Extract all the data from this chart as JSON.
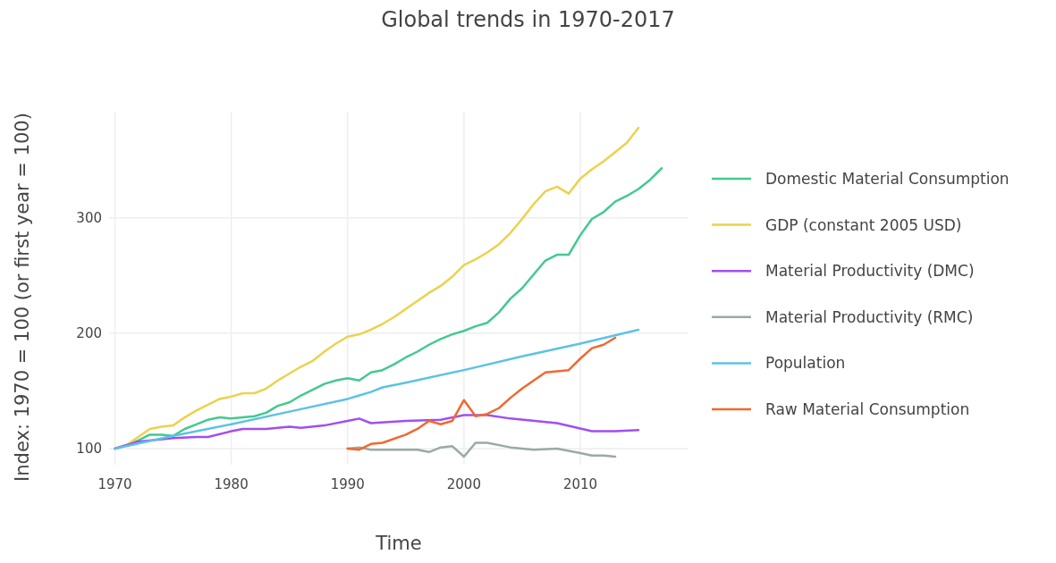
{
  "chart_data": {
    "type": "line",
    "title": "Global trends in 1970-2017",
    "xlabel": "Time",
    "ylabel": "Index: 1970 = 100 (or first year = 100)",
    "xlim": [
      1969.5,
      2019.3
    ],
    "xticks": [
      1970,
      1980,
      1990,
      2000,
      2010
    ],
    "ylim": [
      86,
      392
    ],
    "yticks": [
      100,
      200,
      300
    ],
    "grid": true,
    "legend": "right",
    "marker": "none",
    "line_style": "solid",
    "series": [
      {
        "name": "Domestic Material Consumption",
        "color": "#44c98f",
        "x": [
          1970,
          1971,
          1972,
          1973,
          1974,
          1975,
          1976,
          1977,
          1978,
          1979,
          1980,
          1981,
          1982,
          1983,
          1984,
          1985,
          1986,
          1987,
          1988,
          1989,
          1990,
          1991,
          1992,
          1993,
          1994,
          1995,
          1996,
          1997,
          1998,
          1999,
          2000,
          2001,
          2002,
          2003,
          2004,
          2005,
          2006,
          2007,
          2008,
          2009,
          2010,
          2011,
          2012,
          2013,
          2014,
          2015,
          2016,
          2017
        ],
        "values": [
          100,
          103,
          107,
          112,
          112,
          111,
          117,
          121,
          125,
          127,
          126,
          127,
          128,
          131,
          137,
          140,
          146,
          151,
          156,
          159,
          161,
          159,
          166,
          168,
          173,
          179,
          184,
          190,
          195,
          199,
          202,
          206,
          209,
          218,
          230,
          239,
          251,
          263,
          268,
          268,
          285,
          299,
          305,
          314,
          319,
          325,
          333,
          343
        ]
      },
      {
        "name": "GDP (constant 2005 USD)",
        "color": "#ebd24c",
        "x": [
          1970,
          1971,
          1972,
          1973,
          1974,
          1975,
          1976,
          1977,
          1978,
          1979,
          1980,
          1981,
          1982,
          1983,
          1984,
          1985,
          1986,
          1987,
          1988,
          1989,
          1990,
          1991,
          1992,
          1993,
          1994,
          1995,
          1996,
          1997,
          1998,
          1999,
          2000,
          2001,
          2002,
          2003,
          2004,
          2005,
          2006,
          2007,
          2008,
          2009,
          2010,
          2011,
          2012,
          2013,
          2014,
          2015
        ],
        "values": [
          100,
          103,
          110,
          117,
          119,
          120,
          127,
          133,
          138,
          143,
          145,
          148,
          148,
          152,
          159,
          165,
          171,
          176,
          184,
          191,
          197,
          199,
          203,
          208,
          214,
          221,
          228,
          235,
          241,
          249,
          259,
          264,
          270,
          277,
          287,
          299,
          312,
          323,
          327,
          321,
          334,
          342,
          349,
          357,
          365,
          378
        ]
      },
      {
        "name": "Material Productivity (DMC)",
        "color": "#a24ef2",
        "x": [
          1970,
          1972,
          1975,
          1977,
          1978,
          1980,
          1981,
          1983,
          1985,
          1986,
          1988,
          1990,
          1991,
          1992,
          1995,
          1998,
          2000,
          2002,
          2004,
          2008,
          2011,
          2013,
          2015
        ],
        "values": [
          100,
          106,
          109,
          110,
          110,
          115,
          117,
          117,
          119,
          118,
          120,
          124,
          126,
          122,
          124,
          125,
          129,
          129,
          126,
          122,
          115,
          115,
          116
        ]
      },
      {
        "name": "Material Productivity (RMC)",
        "color": "#9aaaa5",
        "x": [
          1990,
          1991,
          1992,
          1993,
          1996,
          1997,
          1998,
          1999,
          2000,
          2001,
          2002,
          2004,
          2006,
          2008,
          2010,
          2011,
          2012,
          2013
        ],
        "values": [
          100,
          101,
          99,
          99,
          99,
          97,
          101,
          102,
          93,
          105,
          105,
          101,
          99,
          100,
          96,
          94,
          94,
          93
        ]
      },
      {
        "name": "Population",
        "color": "#5cc2e6",
        "x": [
          1970,
          1975,
          1980,
          1985,
          1990,
          1991,
          1992,
          1993,
          1995,
          2000,
          2005,
          2010,
          2015
        ],
        "values": [
          100,
          111,
          121,
          132,
          143,
          146,
          149,
          153,
          157,
          168,
          180,
          191,
          203
        ]
      },
      {
        "name": "Raw Material Consumption",
        "color": "#f1682f",
        "x": [
          1990,
          1991,
          1992,
          1993,
          1995,
          1996,
          1997,
          1998,
          1999,
          2000,
          2001,
          2002,
          2003,
          2004,
          2005,
          2006,
          2007,
          2008,
          2009,
          2010,
          2011,
          2012,
          2013
        ],
        "values": [
          100,
          99,
          104,
          105,
          112,
          117,
          124,
          121,
          124,
          142,
          128,
          130,
          135,
          144,
          152,
          159,
          166,
          167,
          168,
          178,
          187,
          190,
          196
        ]
      }
    ]
  }
}
